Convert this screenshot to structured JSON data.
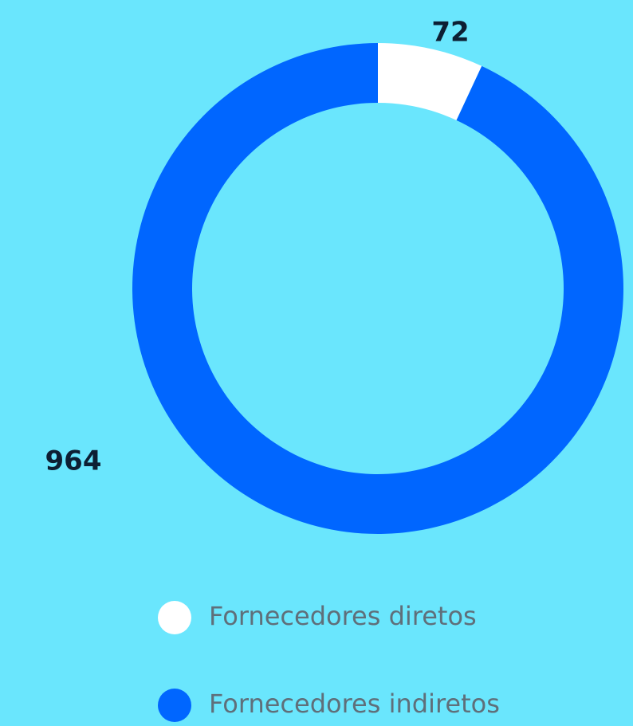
{
  "chart_data": {
    "type": "donut",
    "categories": [
      "Fornecedores diretos",
      "Fornecedores indiretos"
    ],
    "values": [
      72,
      964
    ],
    "colors": [
      "#ffffff",
      "#0066ff"
    ]
  }
}
